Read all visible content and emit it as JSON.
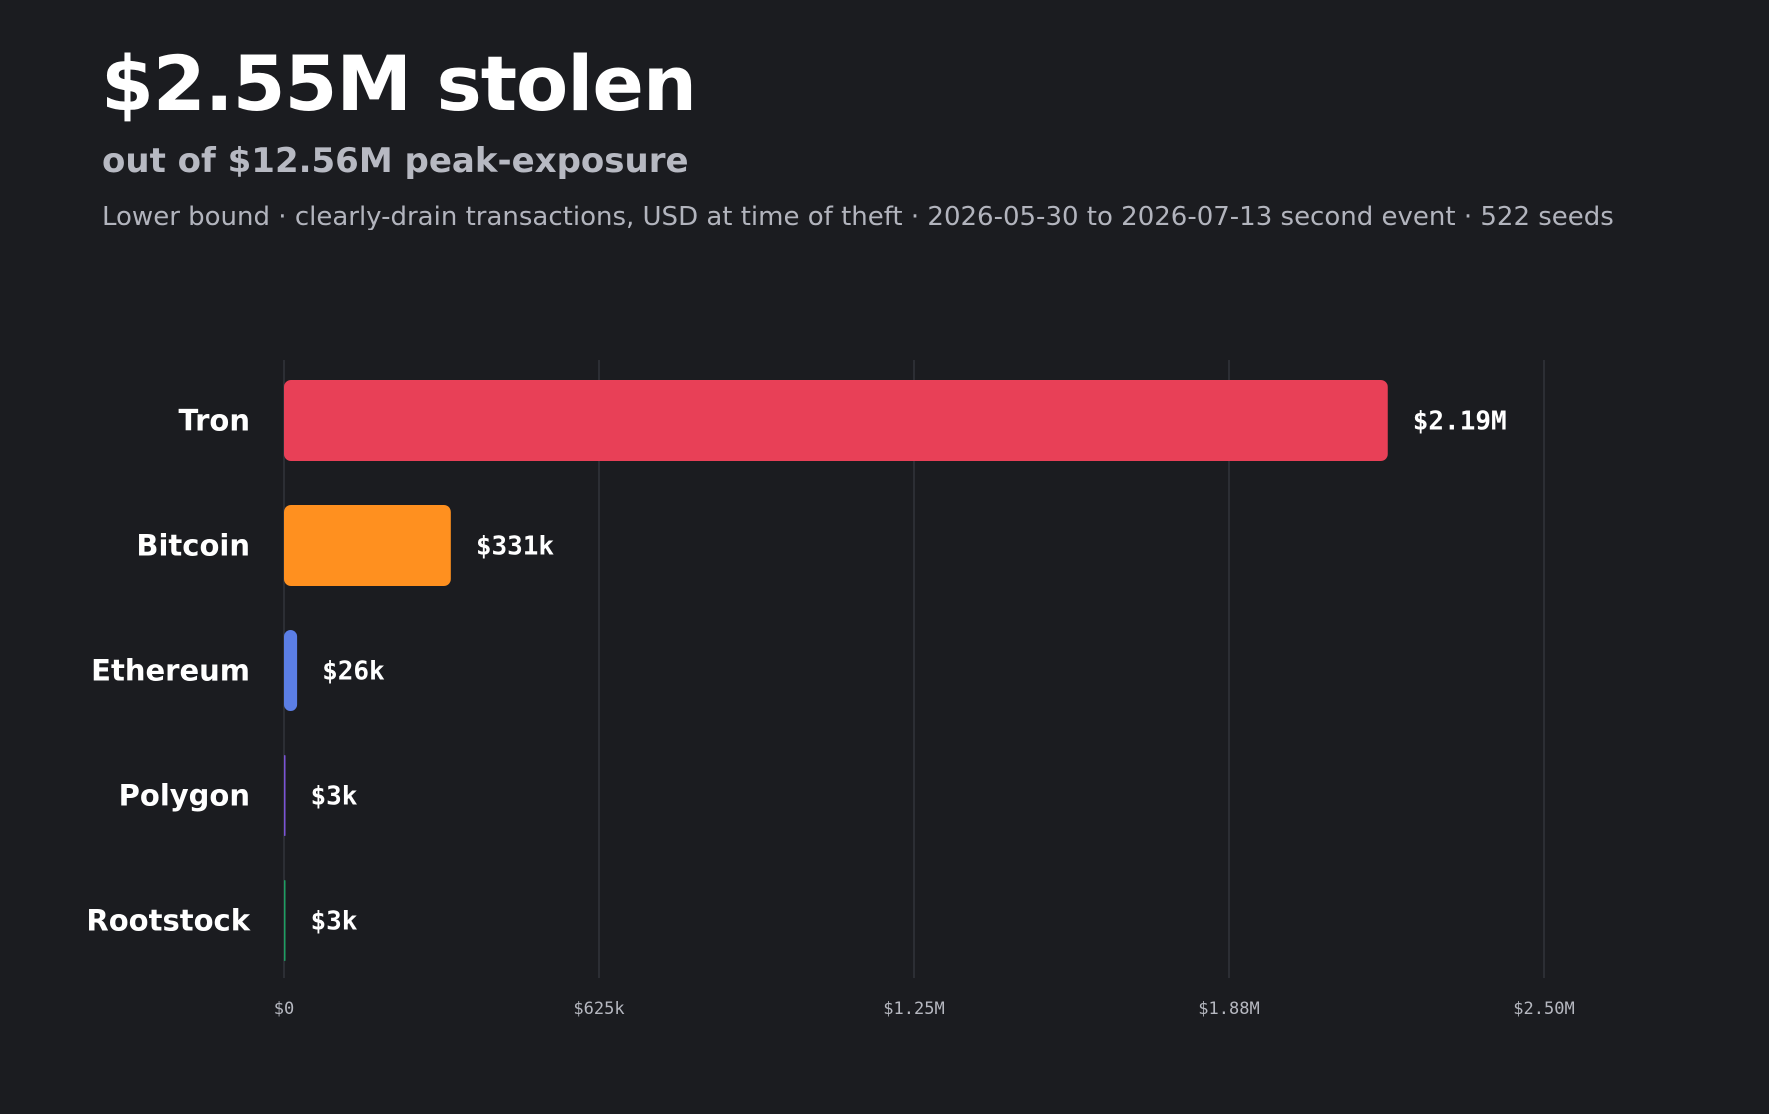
{
  "header": {
    "title": "$2.55M stolen",
    "subtitle": "out of $12.56M peak-exposure",
    "note": "Lower bound · clearly-drain transactions, USD at time of theft · 2026-05-30 to 2026-07-13 second event · 522 seeds"
  },
  "chart_data": {
    "type": "bar",
    "orientation": "horizontal",
    "categories": [
      "Tron",
      "Bitcoin",
      "Ethereum",
      "Polygon",
      "Rootstock"
    ],
    "values": [
      2190000,
      331000,
      26000,
      3000,
      3000
    ],
    "value_labels": [
      "$2.19M",
      "$331k",
      "$26k",
      "$3k",
      "$3k"
    ],
    "colors": [
      "#e84057",
      "#ff901f",
      "#5b7ee5",
      "#7b54d6",
      "#1f9e62"
    ],
    "xlim": [
      0,
      2500000
    ],
    "ticks": [
      0,
      625000,
      1250000,
      1875000,
      2500000
    ],
    "tick_labels": [
      "$0",
      "$625k",
      "$1.25M",
      "$1.88M",
      "$2.50M"
    ],
    "grid": true,
    "title": "",
    "xlabel": "",
    "ylabel": ""
  }
}
